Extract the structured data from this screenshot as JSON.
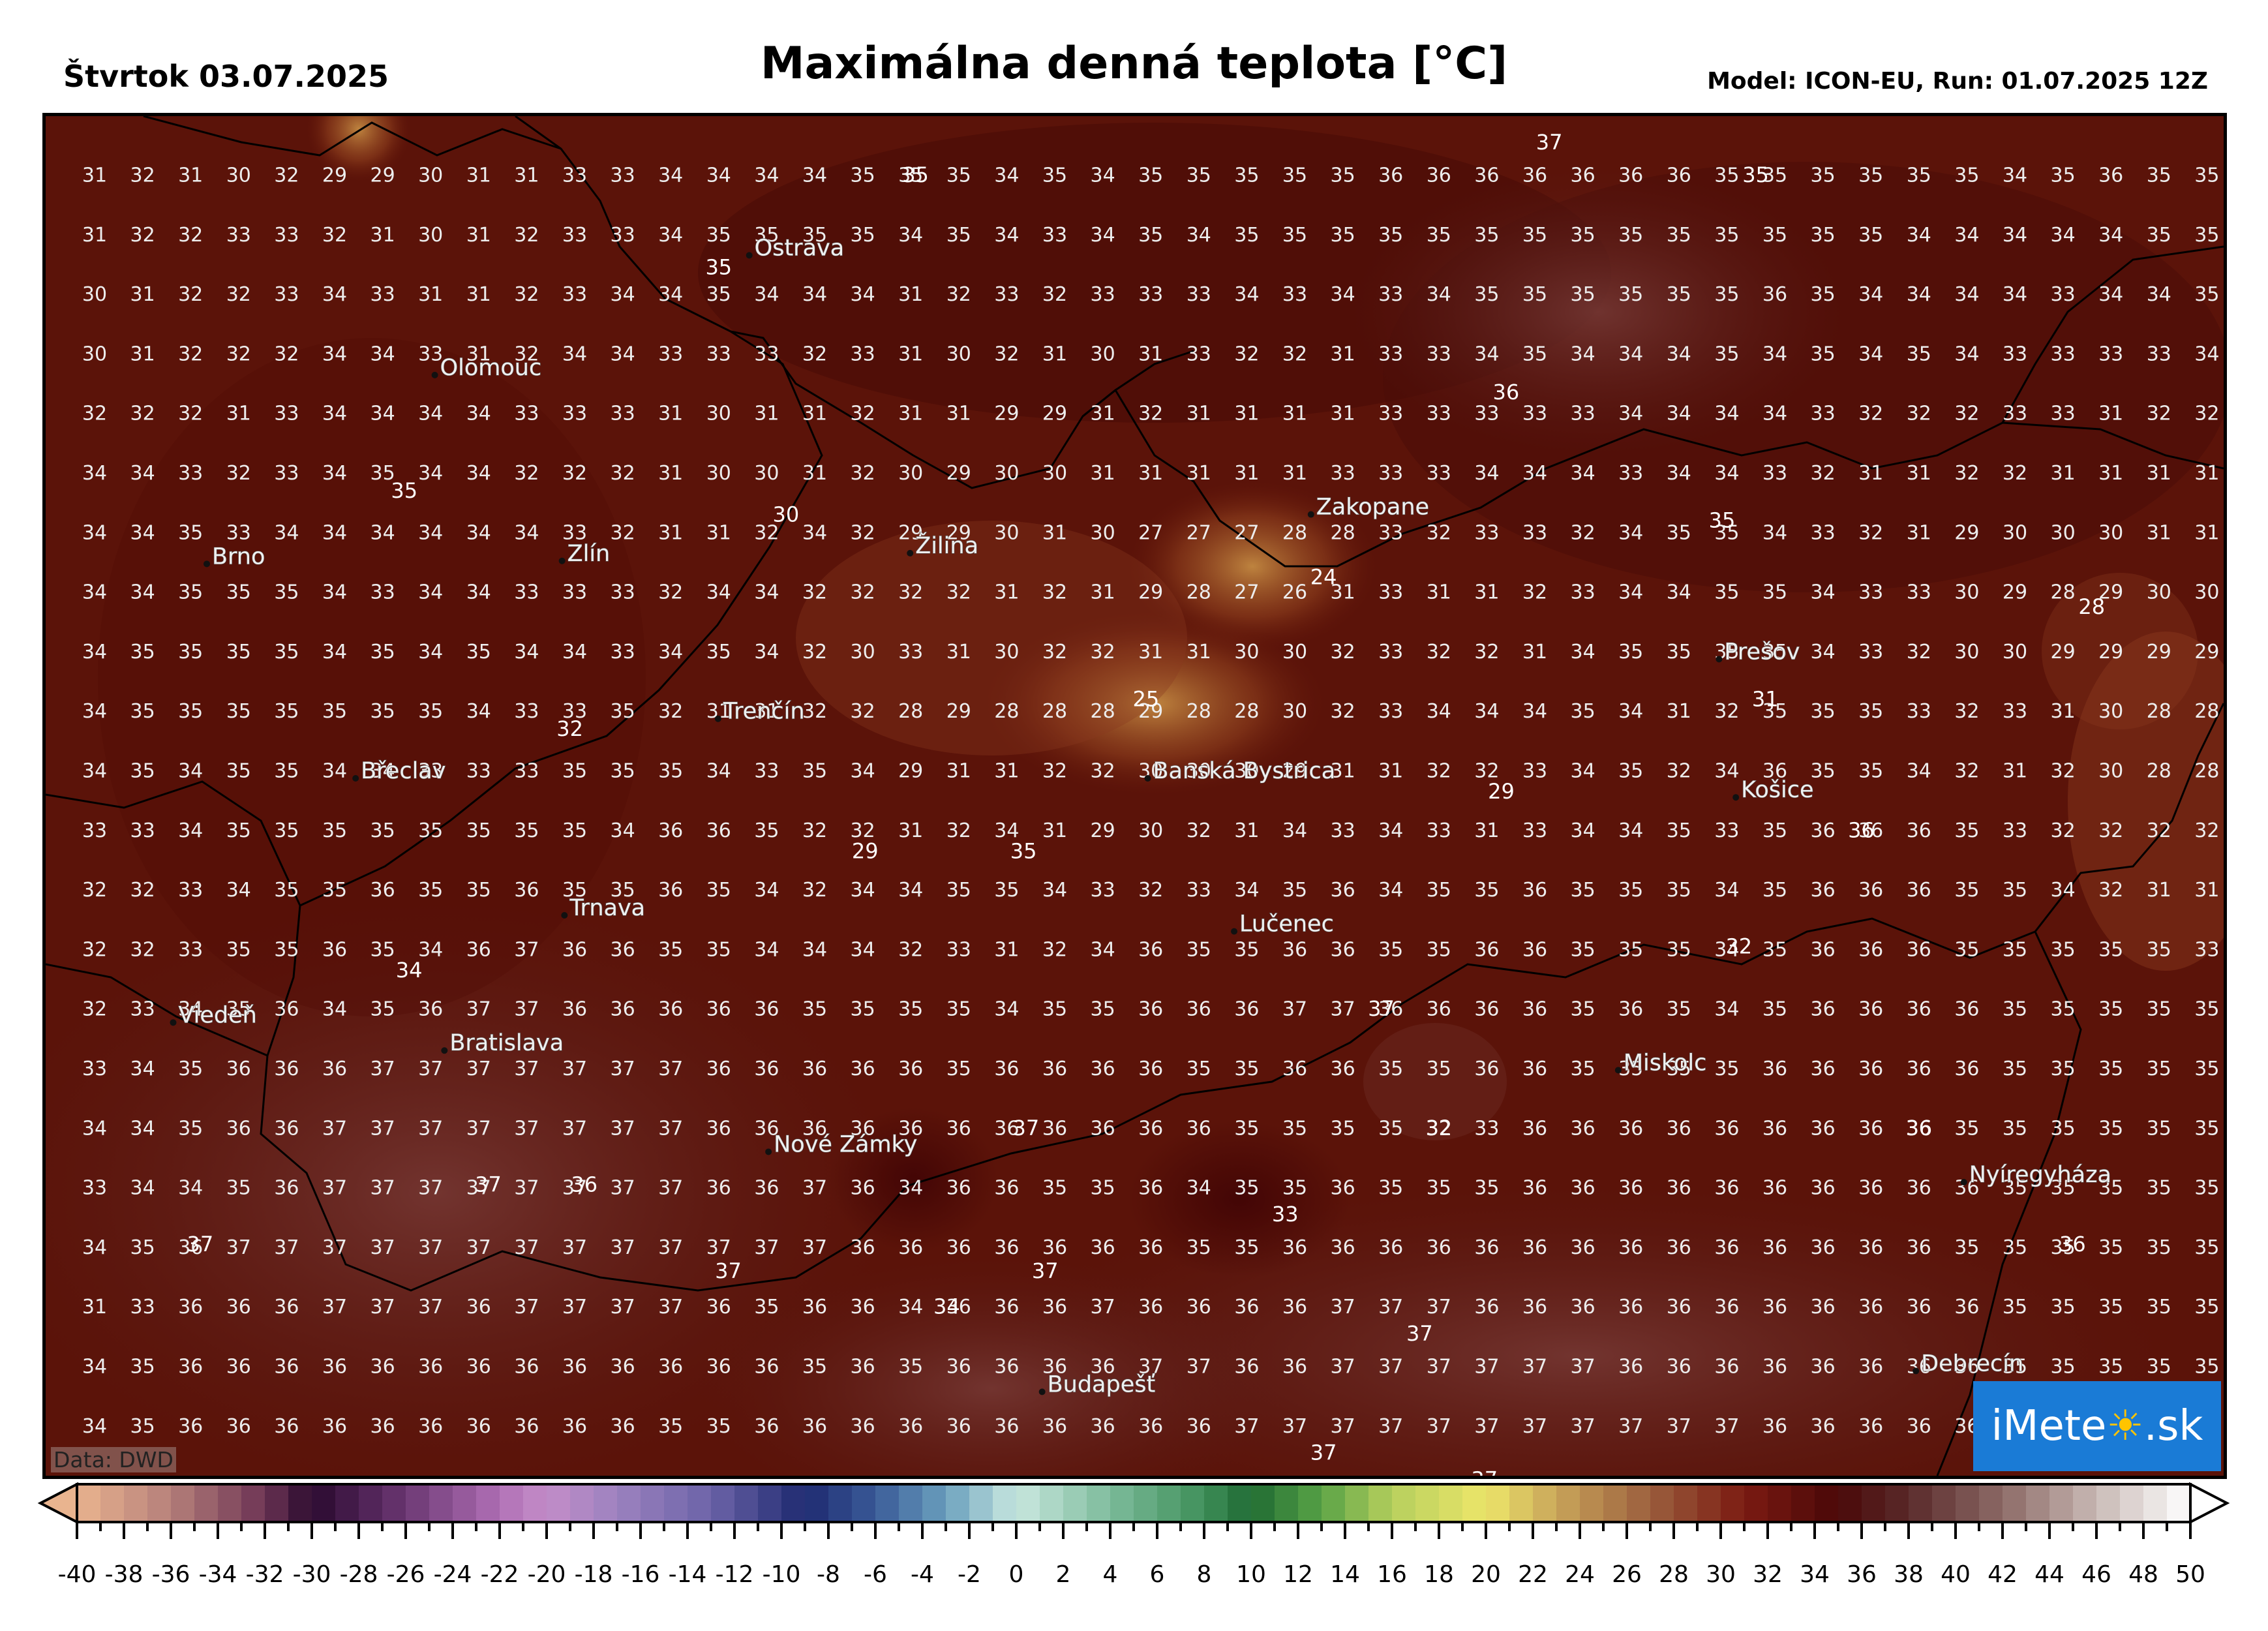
{
  "header": {
    "date": "Štvrtok 03.07.2025",
    "title": "Maximálna denná teplota [°C]",
    "model": "Model: ICON-EU, Run: 01.07.2025 12Z"
  },
  "credit": "Data: DWD",
  "logo": {
    "text_before": "iMete",
    "text_after": ".sk",
    "sun_glyph": "☀"
  },
  "colors": {
    "land": "#5a1208",
    "border": "#000000",
    "logo_bg": "#1a7bd6"
  },
  "grid_values": [
    [
      31,
      32,
      31,
      30,
      32,
      29,
      29,
      30,
      31,
      31,
      33,
      33,
      34,
      34,
      34,
      34,
      35,
      35,
      35,
      34,
      35,
      34,
      35,
      35,
      35,
      35,
      35,
      36,
      36,
      36,
      36,
      36,
      36,
      36,
      35,
      35,
      35,
      35,
      35,
      35,
      34,
      35,
      36,
      35,
      35
    ],
    [
      31,
      32,
      32,
      33,
      33,
      32,
      31,
      30,
      31,
      32,
      33,
      33,
      34,
      35,
      35,
      35,
      35,
      34,
      35,
      34,
      33,
      34,
      35,
      34,
      35,
      35,
      35,
      35,
      35,
      35,
      35,
      35,
      35,
      35,
      35,
      35,
      35,
      35,
      34,
      34,
      34,
      34,
      34,
      35,
      35
    ],
    [
      30,
      31,
      32,
      32,
      33,
      34,
      33,
      31,
      31,
      32,
      33,
      34,
      34,
      35,
      34,
      34,
      34,
      31,
      32,
      33,
      32,
      33,
      33,
      33,
      34,
      33,
      34,
      33,
      34,
      35,
      35,
      35,
      35,
      35,
      35,
      36,
      35,
      34,
      34,
      34,
      34,
      33,
      34,
      34,
      35
    ],
    [
      30,
      31,
      32,
      32,
      32,
      34,
      34,
      33,
      31,
      32,
      34,
      34,
      33,
      33,
      33,
      32,
      33,
      31,
      30,
      32,
      31,
      30,
      31,
      33,
      32,
      32,
      31,
      33,
      33,
      34,
      35,
      34,
      34,
      34,
      35,
      34,
      35,
      34,
      35,
      34,
      33,
      33,
      33,
      33,
      34
    ],
    [
      32,
      32,
      32,
      31,
      33,
      34,
      34,
      34,
      34,
      33,
      33,
      33,
      31,
      30,
      31,
      31,
      32,
      31,
      31,
      29,
      29,
      31,
      32,
      31,
      31,
      31,
      31,
      33,
      33,
      33,
      33,
      33,
      34,
      34,
      34,
      34,
      33,
      32,
      32,
      32,
      33,
      33,
      31,
      32,
      32
    ],
    [
      34,
      34,
      33,
      32,
      33,
      34,
      35,
      34,
      34,
      32,
      32,
      32,
      31,
      30,
      30,
      31,
      32,
      30,
      29,
      30,
      30,
      31,
      31,
      31,
      31,
      31,
      33,
      33,
      33,
      34,
      34,
      34,
      33,
      34,
      34,
      33,
      32,
      31,
      31,
      32,
      32,
      31,
      31,
      31,
      31
    ],
    [
      34,
      34,
      35,
      33,
      34,
      34,
      34,
      34,
      34,
      34,
      33,
      32,
      31,
      31,
      32,
      34,
      32,
      29,
      29,
      30,
      31,
      30,
      27,
      27,
      27,
      28,
      28,
      33,
      32,
      33,
      33,
      32,
      34,
      35,
      35,
      34,
      33,
      32,
      31,
      29,
      30,
      30,
      30,
      31,
      31
    ],
    [
      34,
      34,
      35,
      35,
      35,
      34,
      33,
      34,
      34,
      33,
      33,
      33,
      32,
      34,
      34,
      32,
      32,
      32,
      32,
      31,
      32,
      31,
      29,
      28,
      27,
      26,
      31,
      33,
      31,
      31,
      32,
      33,
      34,
      34,
      35,
      35,
      34,
      33,
      33,
      30,
      29,
      28,
      29,
      30,
      30
    ],
    [
      34,
      35,
      35,
      35,
      35,
      34,
      35,
      34,
      35,
      34,
      34,
      33,
      34,
      35,
      34,
      32,
      30,
      33,
      31,
      30,
      32,
      32,
      31,
      31,
      30,
      30,
      32,
      33,
      32,
      32,
      31,
      34,
      35,
      35,
      35,
      35,
      34,
      33,
      32,
      30,
      30,
      29,
      29,
      29,
      29
    ],
    [
      34,
      35,
      35,
      35,
      35,
      35,
      35,
      35,
      34,
      33,
      33,
      35,
      32,
      31,
      31,
      32,
      32,
      28,
      29,
      28,
      28,
      28,
      29,
      28,
      28,
      30,
      32,
      33,
      34,
      34,
      34,
      35,
      34,
      31,
      32,
      35,
      35,
      35,
      33,
      32,
      33,
      31,
      30,
      28,
      28
    ],
    [
      34,
      35,
      34,
      35,
      35,
      34,
      34,
      33,
      33,
      33,
      35,
      35,
      35,
      34,
      33,
      35,
      34,
      29,
      31,
      31,
      32,
      32,
      30,
      30,
      30,
      29,
      31,
      31,
      32,
      32,
      33,
      34,
      35,
      32,
      34,
      36,
      35,
      35,
      34,
      32,
      31,
      32,
      30,
      28,
      28
    ],
    [
      33,
      33,
      34,
      35,
      35,
      35,
      35,
      35,
      35,
      35,
      35,
      34,
      36,
      36,
      35,
      32,
      32,
      31,
      32,
      34,
      31,
      29,
      30,
      32,
      31,
      34,
      33,
      34,
      33,
      31,
      33,
      34,
      34,
      35,
      33,
      35,
      36,
      36,
      36,
      35,
      33,
      32,
      32,
      32,
      32
    ],
    [
      32,
      32,
      33,
      34,
      35,
      35,
      36,
      35,
      35,
      36,
      35,
      35,
      36,
      35,
      34,
      32,
      34,
      34,
      35,
      35,
      34,
      33,
      32,
      33,
      34,
      35,
      36,
      34,
      35,
      35,
      36,
      35,
      35,
      35,
      34,
      35,
      36,
      36,
      36,
      35,
      35,
      34,
      32,
      31,
      31
    ],
    [
      32,
      32,
      33,
      35,
      35,
      36,
      35,
      34,
      36,
      37,
      36,
      36,
      35,
      35,
      34,
      34,
      34,
      32,
      33,
      31,
      32,
      34,
      36,
      35,
      35,
      36,
      36,
      35,
      35,
      36,
      36,
      35,
      35,
      35,
      34,
      35,
      36,
      36,
      36,
      35,
      35,
      35,
      35,
      35,
      33
    ],
    [
      32,
      33,
      34,
      35,
      36,
      34,
      35,
      36,
      37,
      37,
      36,
      36,
      36,
      36,
      36,
      35,
      35,
      35,
      35,
      34,
      35,
      35,
      36,
      36,
      36,
      37,
      37,
      36,
      36,
      36,
      36,
      35,
      36,
      35,
      34,
      35,
      36,
      36,
      36,
      36,
      35,
      35,
      35,
      35,
      35
    ],
    [
      33,
      34,
      35,
      36,
      36,
      36,
      37,
      37,
      37,
      37,
      37,
      37,
      37,
      36,
      36,
      36,
      36,
      36,
      35,
      36,
      36,
      36,
      36,
      35,
      35,
      36,
      36,
      35,
      35,
      36,
      36,
      35,
      35,
      35,
      35,
      36,
      36,
      36,
      36,
      36,
      35,
      35,
      35,
      35,
      35
    ],
    [
      34,
      34,
      35,
      36,
      36,
      37,
      37,
      37,
      37,
      37,
      37,
      37,
      37,
      36,
      36,
      36,
      36,
      36,
      36,
      36,
      36,
      36,
      36,
      36,
      35,
      35,
      35,
      35,
      32,
      33,
      36,
      36,
      36,
      36,
      36,
      36,
      36,
      36,
      36,
      35,
      35,
      35,
      35,
      35,
      35
    ],
    [
      33,
      34,
      34,
      35,
      36,
      37,
      37,
      37,
      37,
      37,
      37,
      37,
      37,
      36,
      36,
      37,
      36,
      34,
      36,
      36,
      35,
      35,
      36,
      34,
      35,
      35,
      36,
      35,
      35,
      35,
      36,
      36,
      36,
      36,
      36,
      36,
      36,
      36,
      36,
      36,
      35,
      35,
      35,
      35,
      35
    ],
    [
      34,
      35,
      36,
      37,
      37,
      37,
      37,
      37,
      37,
      37,
      37,
      37,
      37,
      37,
      37,
      37,
      36,
      36,
      36,
      36,
      36,
      36,
      36,
      35,
      35,
      36,
      36,
      36,
      36,
      36,
      36,
      36,
      36,
      36,
      36,
      36,
      36,
      36,
      36,
      35,
      35,
      35,
      35,
      35,
      35
    ],
    [
      31,
      33,
      36,
      36,
      36,
      37,
      37,
      37,
      36,
      37,
      37,
      37,
      37,
      36,
      35,
      36,
      36,
      34,
      36,
      36,
      36,
      37,
      36,
      36,
      36,
      36,
      37,
      37,
      37,
      36,
      36,
      36,
      36,
      36,
      36,
      36,
      36,
      36,
      36,
      36,
      35,
      35,
      35,
      35,
      35
    ],
    [
      34,
      35,
      36,
      36,
      36,
      36,
      36,
      36,
      36,
      36,
      36,
      36,
      36,
      36,
      36,
      35,
      36,
      35,
      36,
      36,
      36,
      36,
      37,
      37,
      36,
      36,
      37,
      37,
      37,
      37,
      37,
      37,
      36,
      36,
      36,
      36,
      36,
      36,
      36,
      36,
      35,
      35,
      35,
      35,
      35
    ],
    [
      34,
      35,
      36,
      36,
      36,
      36,
      36,
      36,
      36,
      36,
      36,
      36,
      35,
      35,
      36,
      36,
      36,
      36,
      36,
      36,
      36,
      36,
      36,
      36,
      37,
      37,
      37,
      37,
      37,
      37,
      37,
      37,
      37,
      37,
      37,
      36,
      36,
      36,
      36,
      36,
      null,
      null,
      null,
      null,
      null
    ]
  ],
  "extrema": [
    {
      "text": "37",
      "col": 30.3,
      "row": -0.55
    },
    {
      "text": "35",
      "col": 17.1,
      "row": 0
    },
    {
      "text": "35",
      "col": 34.6,
      "row": 0
    },
    {
      "text": "35",
      "col": 13.0,
      "row": 1.55
    },
    {
      "text": "36",
      "col": 29.4,
      "row": 3.65
    },
    {
      "text": "35",
      "col": 6.45,
      "row": 5.3
    },
    {
      "text": "30",
      "col": 14.4,
      "row": 5.7
    },
    {
      "text": "24",
      "col": 25.6,
      "row": 6.75
    },
    {
      "text": "35",
      "col": 33.9,
      "row": 5.8
    },
    {
      "text": "28",
      "col": 41.6,
      "row": 7.25
    },
    {
      "text": "25",
      "col": 21.9,
      "row": 8.8
    },
    {
      "text": "31",
      "col": 34.8,
      "row": 8.8
    },
    {
      "text": "32",
      "col": 9.9,
      "row": 9.3
    },
    {
      "text": "29",
      "col": 29.3,
      "row": 10.35
    },
    {
      "text": "36",
      "col": 36.8,
      "row": 11.0
    },
    {
      "text": "29",
      "col": 16.05,
      "row": 11.35
    },
    {
      "text": "35",
      "col": 19.35,
      "row": 11.35
    },
    {
      "text": "34",
      "col": 6.55,
      "row": 13.35
    },
    {
      "text": "32",
      "col": 34.25,
      "row": 12.95
    },
    {
      "text": "37",
      "col": 26.8,
      "row": 14.0
    },
    {
      "text": "37",
      "col": 19.4,
      "row": 16.0
    },
    {
      "text": "32",
      "col": 28.0,
      "row": 16.0
    },
    {
      "text": "36",
      "col": 38.0,
      "row": 16.0
    },
    {
      "text": "37",
      "col": 8.2,
      "row": 16.95
    },
    {
      "text": "36",
      "col": 10.2,
      "row": 16.95
    },
    {
      "text": "33",
      "col": 24.8,
      "row": 17.45
    },
    {
      "text": "37",
      "col": 2.2,
      "row": 17.95
    },
    {
      "text": "36",
      "col": 41.2,
      "row": 17.95
    },
    {
      "text": "37",
      "col": 13.2,
      "row": 18.4
    },
    {
      "text": "37",
      "col": 19.8,
      "row": 18.4
    },
    {
      "text": "34",
      "col": 17.75,
      "row": 19.0
    },
    {
      "text": "37",
      "col": 27.6,
      "row": 19.45
    },
    {
      "text": "37",
      "col": 25.6,
      "row": 21.45
    },
    {
      "text": "37",
      "col": 28.95,
      "row": 21.9
    }
  ],
  "cities": [
    {
      "name": "Ostrava",
      "col": 13.8,
      "row": 1.22
    },
    {
      "name": "Olomouc",
      "col": 7.25,
      "row": 3.23
    },
    {
      "name": "Brno",
      "col": 2.5,
      "row": 6.4
    },
    {
      "name": "Zlín",
      "col": 9.9,
      "row": 6.35
    },
    {
      "name": "Žilina",
      "col": 17.15,
      "row": 6.22
    },
    {
      "name": "Zakopane",
      "col": 25.5,
      "row": 5.57
    },
    {
      "name": "Prešov",
      "col": 34.0,
      "row": 8.0
    },
    {
      "name": "Trenčín",
      "col": 13.15,
      "row": 9.0
    },
    {
      "name": "Břeclav",
      "col": 5.6,
      "row": 10.0
    },
    {
      "name": "Banská Bystrica",
      "col": 22.1,
      "row": 10.0
    },
    {
      "name": "Košice",
      "col": 34.35,
      "row": 10.32
    },
    {
      "name": "Trnava",
      "col": 9.95,
      "row": 12.3
    },
    {
      "name": "Lučenec",
      "col": 23.9,
      "row": 12.57
    },
    {
      "name": "Viedeň",
      "col": 1.8,
      "row": 14.1
    },
    {
      "name": "Bratislava",
      "col": 7.45,
      "row": 14.57
    },
    {
      "name": "Miskolc",
      "col": 31.9,
      "row": 14.9
    },
    {
      "name": "Nové Zámky",
      "col": 14.2,
      "row": 16.27
    },
    {
      "name": "Nyíregyháza",
      "col": 39.1,
      "row": 16.78
    },
    {
      "name": "Budapešť",
      "col": 19.9,
      "row": 20.3
    },
    {
      "name": "Debrecín",
      "col": 38.1,
      "row": 19.95
    }
  ],
  "colorbar": {
    "min": -40,
    "max": 50,
    "step": 1,
    "tick_labels": [
      "-40",
      "-38",
      "-36",
      "-34",
      "-32",
      "-30",
      "-28",
      "-26",
      "-24",
      "-22",
      "-20",
      "-18",
      "-16",
      "-14",
      "-12",
      "-10",
      "-8",
      "-6",
      "-4",
      "-2",
      "0",
      "2",
      "4",
      "6",
      "8",
      "10",
      "12",
      "14",
      "16",
      "18",
      "20",
      "22",
      "24",
      "26",
      "28",
      "30",
      "32",
      "34",
      "36",
      "38",
      "40",
      "42",
      "44",
      "46",
      "48",
      "50"
    ],
    "stops": [
      [
        -40,
        "#e9b48f"
      ],
      [
        -36,
        "#b57f7a"
      ],
      [
        -32,
        "#6d3454"
      ],
      [
        -30,
        "#2a0a2e"
      ],
      [
        -27,
        "#5a2a62"
      ],
      [
        -22,
        "#b06fb5"
      ],
      [
        -20,
        "#c48dc9"
      ],
      [
        -17,
        "#9c82bf"
      ],
      [
        -13,
        "#6c63a8"
      ],
      [
        -9,
        "#1e2a70"
      ],
      [
        -6,
        "#3a5a98"
      ],
      [
        -3,
        "#6aa0bd"
      ],
      [
        0,
        "#c9e8e0"
      ],
      [
        4,
        "#7dbb9b"
      ],
      [
        8,
        "#3f8f5a"
      ],
      [
        10,
        "#1f6a33"
      ],
      [
        13,
        "#59a346"
      ],
      [
        16,
        "#b6cf5d"
      ],
      [
        20,
        "#ede66a"
      ],
      [
        23,
        "#c9a55a"
      ],
      [
        27,
        "#9b5e3d"
      ],
      [
        31,
        "#7b1a12"
      ],
      [
        35,
        "#4a0808"
      ],
      [
        38,
        "#5a2a2a"
      ],
      [
        42,
        "#8c6a66"
      ],
      [
        46,
        "#c8b9b5"
      ],
      [
        50,
        "#ffffff"
      ]
    ]
  }
}
